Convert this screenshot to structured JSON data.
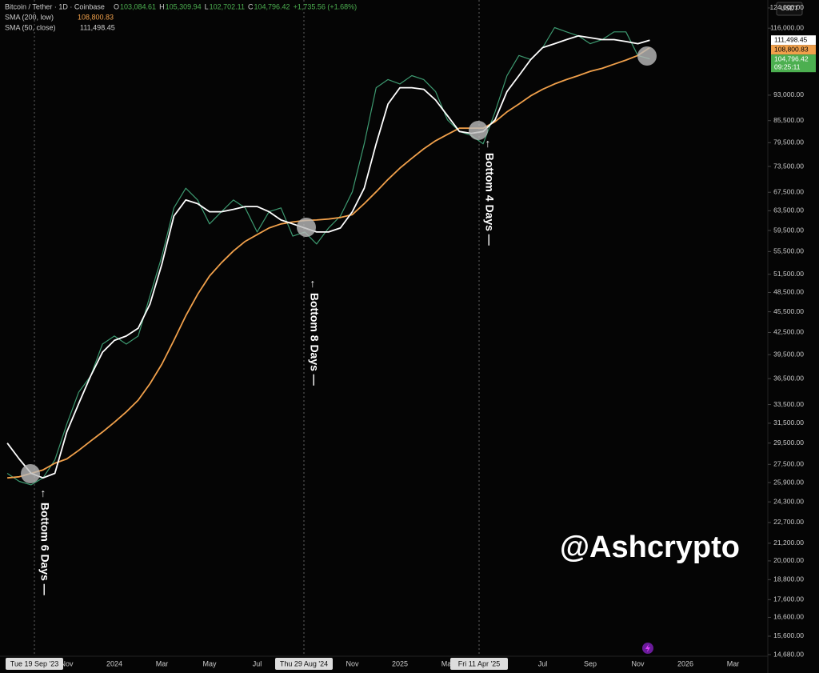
{
  "header": {
    "title": "Bitcoin / Tether · 1D · Coinbase",
    "ohlc": [
      {
        "key": "O",
        "value": "103,084.61"
      },
      {
        "key": "H",
        "value": "105,309.94"
      },
      {
        "key": "L",
        "value": "102,702.11"
      },
      {
        "key": "C",
        "value": "104,796.42"
      }
    ],
    "change": "+1,735.56 (+1.68%)",
    "currency": "USDT"
  },
  "chart_data": {
    "type": "line",
    "log_scale": true,
    "categories": [
      null,
      null,
      null,
      null,
      null,
      "Nov",
      null,
      null,
      null,
      "2024",
      null,
      null,
      null,
      "Mar",
      null,
      null,
      null,
      "May",
      null,
      null,
      null,
      "Jul",
      null,
      null,
      null,
      null,
      null,
      null,
      null,
      "Nov",
      null,
      null,
      null,
      "2025",
      null,
      null,
      null,
      "Mar",
      null,
      null,
      null,
      null,
      null,
      null,
      null,
      "Jul",
      null,
      null,
      null,
      "Sep",
      null,
      null,
      null,
      "Nov",
      null,
      null,
      null,
      "2026",
      null,
      null,
      null,
      "Mar",
      null,
      null
    ],
    "series": [
      {
        "name": "Bitcoin / Tether",
        "color": "#3d9970",
        "values": [
          26700,
          26000,
          25700,
          26300,
          27900,
          31400,
          34900,
          36800,
          40900,
          42000,
          40900,
          42000,
          48000,
          54700,
          64100,
          68400,
          65800,
          60800,
          63300,
          65800,
          64100,
          59200,
          63300,
          64100,
          58400,
          59200,
          56900,
          60000,
          62400,
          67600,
          79200,
          95300,
          97900,
          96500,
          99200,
          97900,
          94100,
          85700,
          82500,
          81400,
          79200,
          88000,
          99200,
          106000,
          104600,
          108800,
          116200,
          114600,
          113100,
          110200,
          111700,
          114600,
          114600,
          106000,
          104800,
          null,
          null,
          null,
          null,
          null,
          null,
          null,
          null,
          null
        ]
      },
      {
        "name": "SMA (200, low)",
        "color": "#f0a04b",
        "last_label": "108,800.83",
        "values": [
          26300,
          26400,
          26700,
          27000,
          27600,
          28000,
          28800,
          29700,
          30600,
          31600,
          32700,
          34000,
          35900,
          38300,
          41400,
          44900,
          48200,
          51200,
          53500,
          55600,
          57400,
          58700,
          60000,
          60800,
          61200,
          61500,
          61600,
          61800,
          62100,
          62700,
          65000,
          67600,
          70400,
          73100,
          75500,
          77900,
          80000,
          81700,
          83400,
          83400,
          83400,
          85200,
          88000,
          90300,
          92800,
          94800,
          96500,
          97900,
          99200,
          100600,
          101600,
          103000,
          104400,
          106000,
          108800,
          null,
          null,
          null,
          null,
          null,
          null,
          null,
          null,
          null
        ]
      },
      {
        "name": "SMA (50, close)",
        "color": "#ffffff",
        "last_label": "111,498.45",
        "values": [
          29500,
          28000,
          26700,
          26300,
          26700,
          30600,
          33600,
          36800,
          39800,
          41400,
          42000,
          43100,
          46700,
          53300,
          62400,
          65800,
          65000,
          63300,
          63300,
          63800,
          64400,
          64400,
          63300,
          61600,
          60800,
          60000,
          59200,
          59200,
          60000,
          63300,
          68400,
          79200,
          90300,
          95300,
          95300,
          94800,
          91500,
          86900,
          82500,
          82000,
          82500,
          85700,
          94100,
          99200,
          104600,
          108800,
          110200,
          111700,
          113100,
          112400,
          111700,
          111700,
          111000,
          110200,
          111500,
          null,
          null,
          null,
          null,
          null,
          null,
          null,
          null,
          null
        ]
      }
    ],
    "ylim": [
      14603,
      127300
    ],
    "yticks": [
      {
        "value": 14680,
        "label": "14,680.00"
      },
      {
        "value": 15600,
        "label": "15,600.00"
      },
      {
        "value": 16600,
        "label": "16,600.00"
      },
      {
        "value": 17600,
        "label": "17,600.00"
      },
      {
        "value": 18800,
        "label": "18,800.00"
      },
      {
        "value": 20000,
        "label": "20,000.00"
      },
      {
        "value": 21200,
        "label": "21,200.00"
      },
      {
        "value": 22700,
        "label": "22,700.00"
      },
      {
        "value": 24300,
        "label": "24,300.00"
      },
      {
        "value": 25900,
        "label": "25,900.00"
      },
      {
        "value": 27500,
        "label": "27,500.00"
      },
      {
        "value": 29500,
        "label": "29,500.00"
      },
      {
        "value": 31500,
        "label": "31,500.00"
      },
      {
        "value": 33500,
        "label": "33,500.00"
      },
      {
        "value": 36500,
        "label": "36,500.00"
      },
      {
        "value": 39500,
        "label": "39,500.00"
      },
      {
        "value": 42500,
        "label": "42,500.00"
      },
      {
        "value": 45500,
        "label": "45,500.00"
      },
      {
        "value": 48500,
        "label": "48,500.00"
      },
      {
        "value": 51500,
        "label": "51,500.00"
      },
      {
        "value": 55500,
        "label": "55,500.00"
      },
      {
        "value": 59500,
        "label": "59,500.00"
      },
      {
        "value": 63500,
        "label": "63,500.00"
      },
      {
        "value": 67500,
        "label": "67,500.00"
      },
      {
        "value": 73500,
        "label": "73,500.00"
      },
      {
        "value": 79500,
        "label": "79,500.00"
      },
      {
        "value": 85500,
        "label": "85,500.00"
      },
      {
        "value": 93000,
        "label": "93,000.00"
      },
      {
        "value": 116000,
        "label": "116,000.00"
      },
      {
        "value": 124000,
        "label": "124,000.00"
      }
    ],
    "price_labels": [
      {
        "value": 111498.45,
        "label": "111,498.45",
        "color": "#ffffff"
      },
      {
        "value": 108800.83,
        "label": "108,800.83",
        "color": "#f0a04b"
      },
      {
        "value": 104796.42,
        "label": "104,796.42",
        "color": "#4caf50",
        "countdown": "09:25:11"
      }
    ],
    "markers": [
      {
        "date": "Tue 19 Sep '23",
        "note": "← Bottom 6 Days —"
      },
      {
        "date": "Thu 29 Aug '24",
        "note": "← Bottom 8 Days —"
      },
      {
        "date": "Fri 11 Apr '25",
        "note": "← Bottom 4 Days —"
      }
    ],
    "watermark": "@Ashcrypto"
  }
}
